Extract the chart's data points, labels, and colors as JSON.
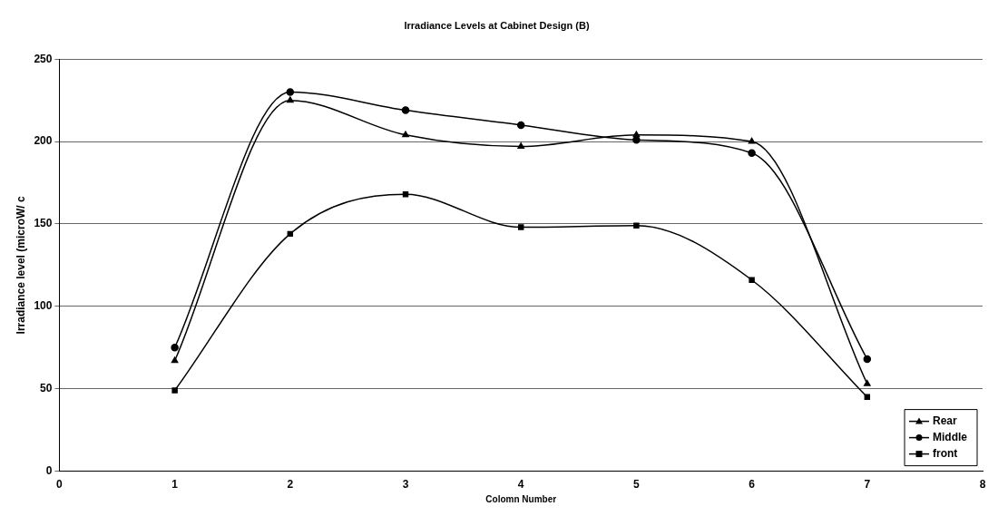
{
  "chart_data": {
    "type": "line",
    "title": "Irradiance Levels at Cabinet Design (B)",
    "xlabel": "Colomn Number",
    "ylabel": "Irradiance level (microW/ c",
    "x": [
      1,
      2,
      3,
      4,
      5,
      6,
      7
    ],
    "series": [
      {
        "name": "Rear",
        "color": "#000000",
        "marker": "triangle",
        "values": [
          67,
          225,
          204,
          197,
          204,
          200,
          53
        ]
      },
      {
        "name": "Middle",
        "color": "#000000",
        "marker": "circle",
        "values": [
          75,
          230,
          219,
          210,
          201,
          193,
          68
        ]
      },
      {
        "name": "front",
        "color": "#000000",
        "marker": "square",
        "values": [
          49,
          144,
          168,
          148,
          149,
          116,
          45
        ]
      }
    ],
    "xlim": [
      0,
      8
    ],
    "xticks": [
      0,
      1,
      2,
      3,
      4,
      5,
      6,
      7,
      8
    ],
    "ylim": [
      0,
      250
    ],
    "yticks": [
      0,
      50,
      100,
      150,
      200,
      250
    ],
    "grid": "y",
    "legend": "bottom right",
    "line_style": "solid"
  }
}
